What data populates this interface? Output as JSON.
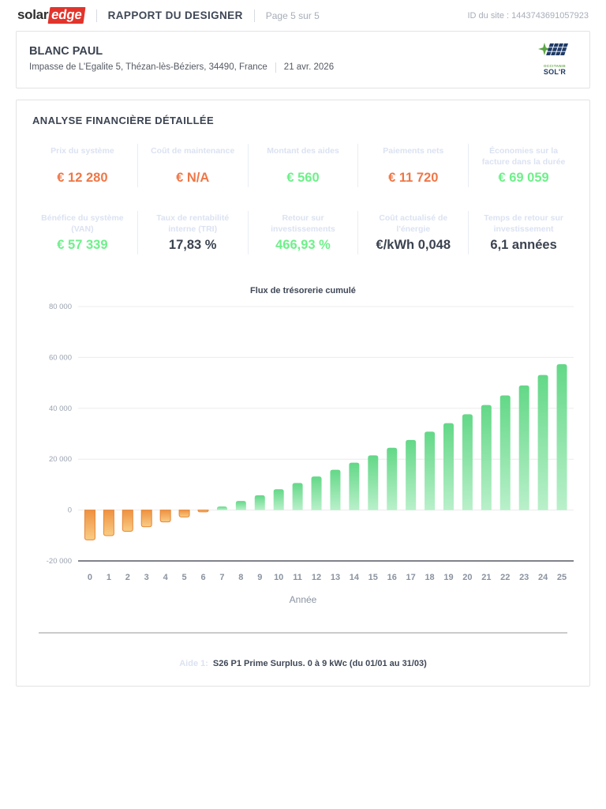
{
  "header": {
    "logo_solar": "solar",
    "logo_edge": "edge",
    "title": "RAPPORT DU DESIGNER",
    "page": "Page 5 sur 5",
    "site_id": "ID du site : 1443743691057923"
  },
  "client": {
    "name": "BLANC PAUL",
    "address": "Impasse de L'Egalite 5, Thézan-lès-Béziers, 34490, France",
    "date": "21 avr. 2026",
    "partner_logo": {
      "line1": "OCCITANIE",
      "line2": "SOL'R"
    }
  },
  "analysis": {
    "title": "ANALYSE FINANCIÈRE DÉTAILLÉE",
    "metrics_row1": [
      {
        "label": "Prix du système",
        "value": "€ 12 280",
        "tone": "orange"
      },
      {
        "label": "Coût de maintenance",
        "value": "€ N/A",
        "tone": "orange"
      },
      {
        "label": "Montant des aides",
        "value": "€ 560",
        "tone": "green"
      },
      {
        "label": "Paiements nets",
        "value": "€ 11 720",
        "tone": "orange"
      },
      {
        "label": "Économies sur la facture dans la durée",
        "value": "€ 69 059",
        "tone": "green"
      }
    ],
    "metrics_row2": [
      {
        "label": "Bénéfice du système (VAN)",
        "value": "€ 57 339",
        "tone": "green"
      },
      {
        "label": "Taux de rentabilité interne (TRI)",
        "value": "17,83 %",
        "tone": "dark"
      },
      {
        "label": "Retour sur investissements",
        "value": "466,93 %",
        "tone": "green"
      },
      {
        "label": "Coût actualisé de l'énergie",
        "value": "€/kWh 0,048",
        "tone": "dark"
      },
      {
        "label": "Temps de retour sur investissement",
        "value": "6,1 années",
        "tone": "dark"
      }
    ]
  },
  "chart_data": {
    "type": "bar",
    "title": "Flux de trésorerie cumulé",
    "xlabel": "Année",
    "ylabel": "",
    "x": [
      0,
      1,
      2,
      3,
      4,
      5,
      6,
      7,
      8,
      9,
      10,
      11,
      12,
      13,
      14,
      15,
      16,
      17,
      18,
      19,
      20,
      21,
      22,
      23,
      24,
      25
    ],
    "values": [
      -11720,
      -10060,
      -8340,
      -6550,
      -4680,
      -2740,
      -720,
      1380,
      3560,
      5830,
      8190,
      10640,
      13190,
      15850,
      18610,
      21480,
      24470,
      27570,
      30800,
      34160,
      37660,
      41290,
      45070,
      49000,
      53090,
      57339
    ],
    "ylim": [
      -20000,
      80000
    ],
    "yticks": [
      {
        "v": 80000,
        "label": "80 000"
      },
      {
        "v": 60000,
        "label": "60 000"
      },
      {
        "v": 40000,
        "label": "40 000"
      },
      {
        "v": 20000,
        "label": "20 000"
      },
      {
        "v": 0,
        "label": "0"
      },
      {
        "v": -20000,
        "label": "-20 000"
      }
    ],
    "grid": true,
    "legend": "none",
    "positive_color_top": "#63d887",
    "positive_color_bottom": "#b9f0ca",
    "negative_color_top": "#ee9140",
    "negative_color_bottom": "#f9cd85",
    "negative_stroke": "#e78637"
  },
  "footnote": {
    "prefix": "Aide 1:",
    "text": "S26 P1 Prime Surplus. 0 à 9 kWc (du 01/01 au 31/03)"
  }
}
